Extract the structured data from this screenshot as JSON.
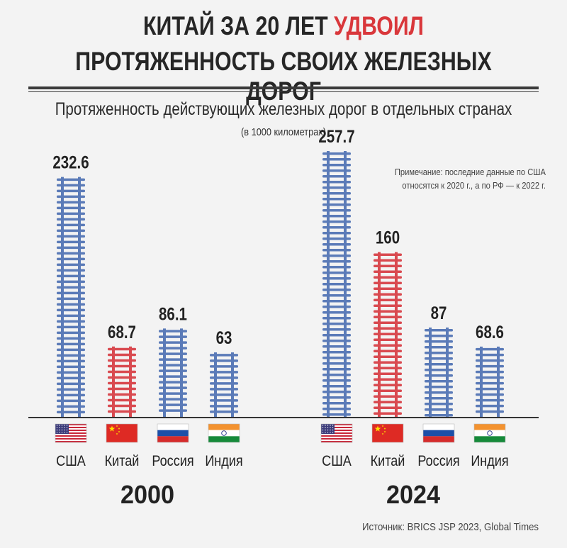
{
  "header": {
    "title_line1_prefix": "КИТАЙ ЗА 20 ЛЕТ",
    "title_line1_accent": "УДВОИЛ",
    "title_line2": "ПРОТЯЖЕННОСТЬ СВОИХ ЖЕЛЕЗНЫХ ДОРОГ"
  },
  "note": "Примечание: последние данные по США относятся к 2020 г., а по РФ — к 2022 г.",
  "source": "Источник: BRICS JSP 2023, Global Times",
  "colors": {
    "default_bar": "#5b7bb8",
    "highlight_bar": "#d94a50",
    "baseline": "#333333"
  },
  "chart_data": {
    "type": "bar",
    "title": "Протяженность действующих железных дорог в отдельных странах",
    "subtitle": "(в 1000 километрах)",
    "categories": [
      "США",
      "Китай",
      "Россия",
      "Индия"
    ],
    "flags": [
      "us-flag-icon",
      "china-flag-icon",
      "russia-flag-icon",
      "india-flag-icon"
    ],
    "highlight_category": "Китай",
    "groups": [
      {
        "label": "2000",
        "values": [
          232.6,
          68.7,
          86.1,
          63
        ]
      },
      {
        "label": "2024",
        "values": [
          257.7,
          160,
          87,
          68.6
        ]
      }
    ],
    "ylim": [
      0,
      257.7
    ],
    "grid": false,
    "legend": "none"
  }
}
